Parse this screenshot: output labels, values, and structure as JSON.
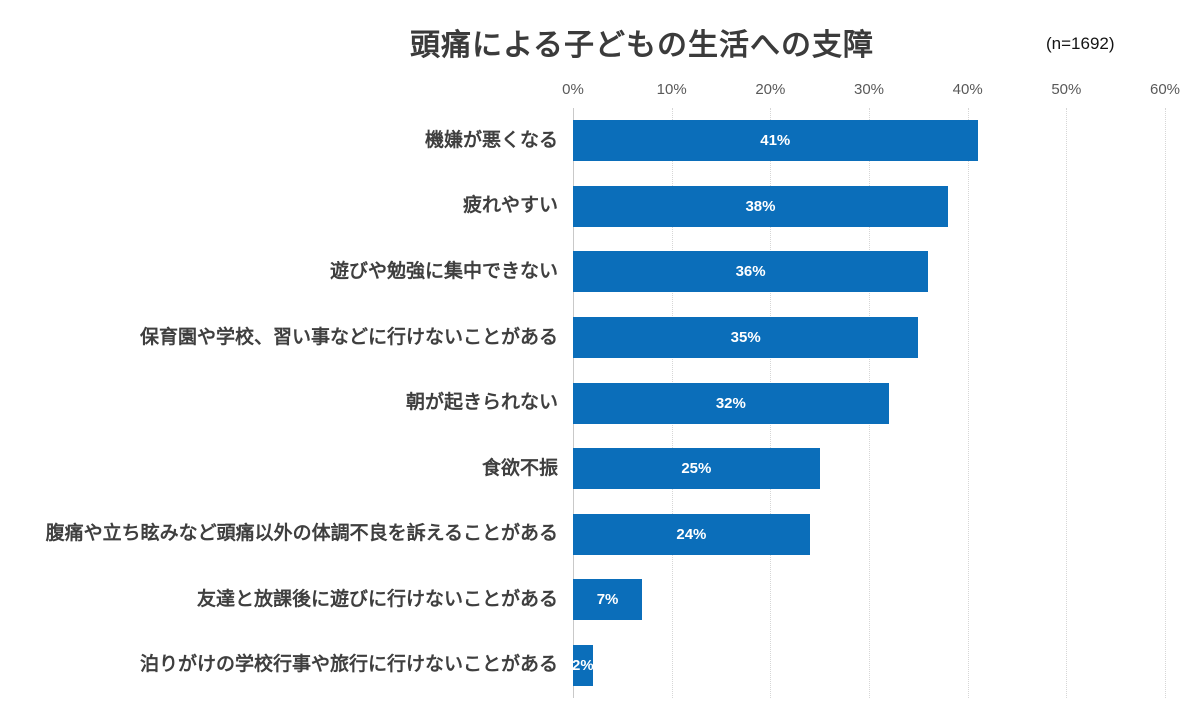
{
  "chart_data": {
    "type": "bar",
    "orientation": "horizontal",
    "title": "頭痛による子どもの生活への支障",
    "sample_size": "(n=1692)",
    "categories": [
      "機嫌が悪くなる",
      "疲れやすい",
      "遊びや勉強に集中できない",
      "保育園や学校、習い事などに行けないことがある",
      "朝が起きられない",
      "食欲不振",
      "腹痛や立ち眩みなど頭痛以外の体調不良を訴えることがある",
      "友達と放課後に遊びに行けないことがある",
      "泊りがけの学校行事や旅行に行けないことがある"
    ],
    "values": [
      41,
      38,
      36,
      35,
      32,
      25,
      24,
      7,
      2
    ],
    "value_labels": [
      "41%",
      "38%",
      "36%",
      "35%",
      "32%",
      "25%",
      "24%",
      "7%",
      "2%"
    ],
    "x_tick_labels": [
      "0%",
      "10%",
      "20%",
      "30%",
      "40%",
      "50%",
      "60%"
    ],
    "xlim": [
      0,
      60
    ],
    "grid": "vertical dotted gridlines every 10%",
    "legend": "none",
    "colors": {
      "bar": "#0b6eba",
      "value_label": "#ffffff",
      "category_label": "#3f3f3f",
      "tick_label": "#595959",
      "gridline": "#d6d6d6",
      "axis_line": "#c9c9c9",
      "title": "#3b3b3b",
      "background": "#ffffff"
    }
  }
}
